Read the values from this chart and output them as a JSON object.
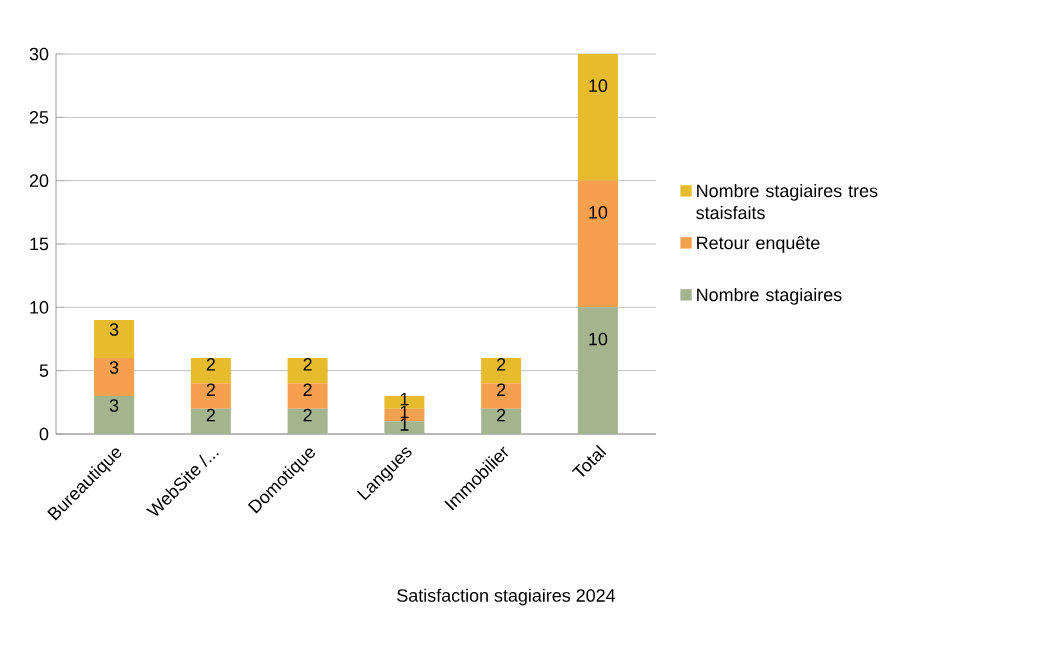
{
  "chart_data": {
    "type": "bar",
    "stacked": true,
    "title": "Satisfaction stagiaires 2024",
    "categories": [
      "Bureautique",
      "WebSite /...",
      "Domotique",
      "Langues",
      "Immobilier",
      "Total"
    ],
    "series": [
      {
        "name": "Nombre stagiaires",
        "color": "#a3b48f",
        "values": [
          3,
          2,
          2,
          1,
          2,
          10
        ]
      },
      {
        "name": "Retour enquête",
        "color": "#f4a04e",
        "values": [
          3,
          2,
          2,
          1,
          2,
          10
        ]
      },
      {
        "name": "Nombre stagiaires tres staisfaits",
        "color": "#e6bb2e",
        "values": [
          3,
          2,
          2,
          1,
          2,
          10
        ]
      }
    ],
    "ylim": [
      0,
      30
    ],
    "yticks": [
      0,
      5,
      10,
      15,
      20,
      25,
      30
    ],
    "grid": "y",
    "legend": "right",
    "data_labels": true
  }
}
